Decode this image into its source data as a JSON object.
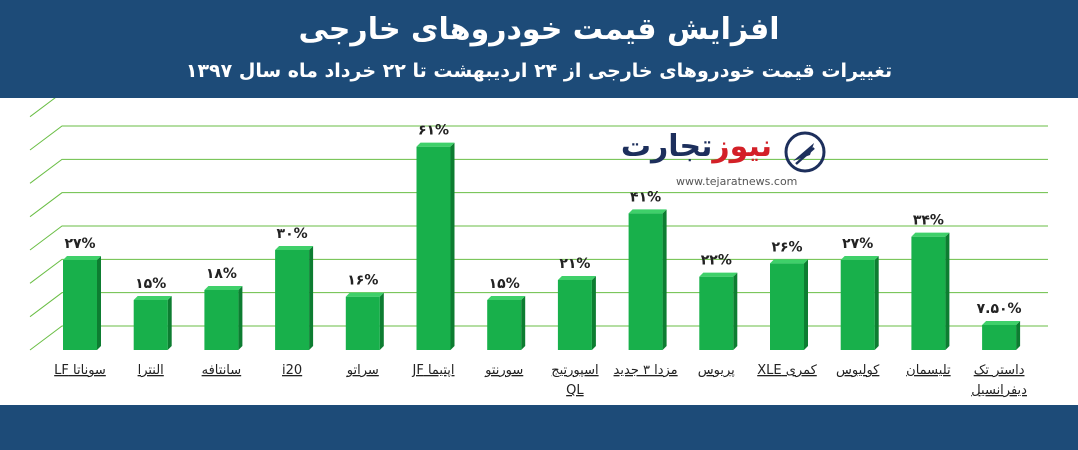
{
  "header": {
    "title": "افزایش قیمت خودروهای خارجی",
    "subtitle": "تغییرات قیمت خودروهای خارجی از ۲۴ اردیبهشت تا ۲۲ خرداد ماه سال ۱۳۹۷"
  },
  "logo": {
    "name_part1": "تجارت",
    "name_part2": "نیوز",
    "url": "www.tejaratnews.com",
    "icon": "tejaratnews-logo-icon"
  },
  "colors": {
    "header_bg": "#1d4b78",
    "bar": "#18b04b",
    "bar_side": "#0d7d31",
    "bar_top": "#3fd06a",
    "grid": "#6abe45"
  },
  "chart_data": {
    "type": "bar",
    "title": "افزایش قیمت خودروهای خارجی",
    "subtitle": "تغییرات قیمت خودروهای خارجی از ۲۴ اردیبهشت تا ۲۲ خرداد ماه سال ۱۳۹۷",
    "ylim": [
      0,
      70
    ],
    "grid": true,
    "categories": [
      [
        "سوناتا LF"
      ],
      [
        "النترا"
      ],
      [
        "سانتافه"
      ],
      [
        "i20"
      ],
      [
        "سراتو"
      ],
      [
        "اپتیما JF"
      ],
      [
        "سورنتو"
      ],
      [
        "اسپورتیج",
        "QL"
      ],
      [
        "مزدا ۳ جدید"
      ],
      [
        "پریوس"
      ],
      [
        "کمری XLE"
      ],
      [
        "کولیوس"
      ],
      [
        "تلیسمان"
      ],
      [
        "داستر تک",
        "دیفرانسیل"
      ]
    ],
    "values": [
      27,
      15,
      18,
      30,
      16,
      61,
      15,
      21,
      41,
      22,
      26,
      27,
      34,
      7.5
    ],
    "value_labels": [
      "۲۷%",
      "۱۵%",
      "۱۸%",
      "۳۰%",
      "۱۶%",
      "۶۱%",
      "۱۵%",
      "۲۱%",
      "۴۱%",
      "۲۲%",
      "۲۶%",
      "۲۷%",
      "۳۴%",
      "۷.۵۰%"
    ]
  }
}
